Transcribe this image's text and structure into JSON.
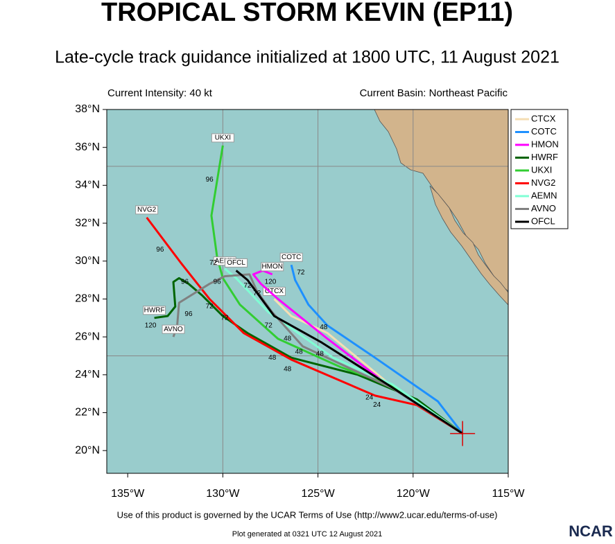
{
  "header": {
    "title": "TROPICAL STORM KEVIN (EP11)",
    "subtitle": "Late-cycle track guidance initialized at 1800 UTC, 11 August 2021",
    "intensity": "Current Intensity: 40 kt",
    "basin": "Current Basin: Northeast Pacific"
  },
  "map": {
    "xlim": [
      -136.1,
      -115
    ],
    "ylim": [
      18.8,
      38
    ],
    "xticks": [
      {
        "value": -135,
        "label": "135°W"
      },
      {
        "value": -130,
        "label": "130°W"
      },
      {
        "value": -125,
        "label": "125°W"
      },
      {
        "value": -120,
        "label": "120°W"
      },
      {
        "value": -115,
        "label": "115°W"
      }
    ],
    "yticks": [
      {
        "value": 20,
        "label": "20°N"
      },
      {
        "value": 22,
        "label": "22°N"
      },
      {
        "value": 24,
        "label": "24°N"
      },
      {
        "value": 26,
        "label": "26°N"
      },
      {
        "value": 28,
        "label": "28°N"
      },
      {
        "value": 30,
        "label": "30°N"
      },
      {
        "value": 32,
        "label": "32°N"
      },
      {
        "value": 34,
        "label": "34°N"
      },
      {
        "value": 36,
        "label": "36°N"
      },
      {
        "value": 38,
        "label": "38°N"
      }
    ],
    "grid_lons": [
      -130,
      -125,
      -120
    ],
    "grid_lats": [
      25,
      35
    ],
    "storm": {
      "lon": -117.4,
      "lat": 20.9
    },
    "tracks": [
      {
        "name": "CTCX",
        "color": "#f5deb3",
        "lon": [
          -117.4,
          -121.0,
          -124.5,
          -126.4,
          -127.3
        ],
        "lat": [
          20.9,
          23.3,
          26.2,
          27.1,
          28.0
        ]
      },
      {
        "name": "COTC",
        "color": "#1e90ff",
        "lon": [
          -117.4,
          -118.7,
          -122.0,
          -124.5,
          -125.5,
          -126.2,
          -126.4
        ],
        "lat": [
          20.9,
          22.6,
          24.9,
          26.6,
          27.7,
          29.0,
          29.8
        ]
      },
      {
        "name": "HMON",
        "color": "#ff00ff",
        "lon": [
          -117.4,
          -121.1,
          -124.5,
          -127.1,
          -128.0,
          -128.4,
          -127.9,
          -127.4
        ],
        "lat": [
          20.9,
          23.3,
          25.9,
          28.0,
          28.8,
          29.3,
          29.5,
          29.3
        ]
      },
      {
        "name": "HWRF",
        "color": "#006400",
        "lon": [
          -117.4,
          -119.8,
          -122.9,
          -126.4,
          -128.7,
          -130.0,
          -131.1,
          -131.8,
          -132.3,
          -132.6,
          -132.5,
          -132.9,
          -133.6
        ],
        "lat": [
          20.9,
          22.7,
          24.0,
          24.9,
          26.2,
          27.1,
          28.2,
          28.8,
          29.1,
          28.9,
          27.6,
          27.1,
          27.0
        ]
      },
      {
        "name": "UKXI",
        "color": "#32cd32",
        "lon": [
          -117.4,
          -121.3,
          -123.8,
          -127.1,
          -129.1,
          -130.0,
          -130.3,
          -130.6,
          -130.0
        ],
        "lat": [
          20.9,
          23.5,
          24.4,
          25.9,
          27.7,
          29.1,
          30.2,
          32.4,
          36.1
        ]
      },
      {
        "name": "NVG2",
        "color": "#ff0000",
        "lon": [
          -117.4,
          -119.8,
          -122.0,
          -126.4,
          -128.9,
          -130.7,
          -132.2,
          -134.0
        ],
        "lat": [
          20.9,
          22.4,
          22.9,
          24.8,
          26.2,
          28.0,
          29.9,
          32.3
        ]
      },
      {
        "name": "AEMN",
        "color": "#7fffd4",
        "lon": [
          -117.4,
          -121.1,
          -124.2,
          -127.6,
          -129.3,
          -129.9
        ],
        "lat": [
          20.9,
          23.5,
          24.9,
          27.3,
          29.1,
          29.6
        ]
      },
      {
        "name": "AVNO",
        "color": "#808080",
        "lon": [
          -117.4,
          -121.1,
          -125.8,
          -127.4,
          -128.2,
          -128.6,
          -129.9,
          -130.7,
          -132.3,
          -132.4,
          -132.6
        ],
        "lat": [
          20.9,
          23.3,
          25.5,
          27.3,
          28.4,
          29.3,
          29.2,
          28.8,
          27.8,
          26.6,
          26.0
        ]
      },
      {
        "name": "OFCL",
        "color": "#000000",
        "lon": [
          -117.4,
          -121.2,
          -124.8,
          -127.3,
          -128.7,
          -129.3
        ],
        "lat": [
          20.9,
          23.4,
          25.7,
          27.1,
          29.0,
          29.5
        ]
      }
    ],
    "hour_labels": [
      {
        "text": "96",
        "lon": -130.7,
        "lat": 34.3
      },
      {
        "text": "96",
        "lon": -133.3,
        "lat": 30.6
      },
      {
        "text": "96",
        "lon": -132.0,
        "lat": 28.9
      },
      {
        "text": "96",
        "lon": -131.8,
        "lat": 27.2
      },
      {
        "text": "96",
        "lon": -130.3,
        "lat": 28.9
      },
      {
        "text": "120",
        "lon": -133.8,
        "lat": 26.6
      },
      {
        "text": "72",
        "lon": -130.5,
        "lat": 29.9
      },
      {
        "text": "72",
        "lon": -130.7,
        "lat": 27.6
      },
      {
        "text": "72",
        "lon": -129.9,
        "lat": 27.0
      },
      {
        "text": "72",
        "lon": -128.7,
        "lat": 28.7
      },
      {
        "text": "72",
        "lon": -128.2,
        "lat": 28.3
      },
      {
        "text": "72",
        "lon": -127.6,
        "lat": 26.6
      },
      {
        "text": "72",
        "lon": -125.9,
        "lat": 29.4
      },
      {
        "text": "120",
        "lon": -127.5,
        "lat": 28.9
      },
      {
        "text": "48",
        "lon": -126.6,
        "lat": 25.9
      },
      {
        "text": "48",
        "lon": -124.7,
        "lat": 26.5
      },
      {
        "text": "48",
        "lon": -127.4,
        "lat": 24.9
      },
      {
        "text": "48",
        "lon": -126.6,
        "lat": 24.3
      },
      {
        "text": "48",
        "lon": -126.0,
        "lat": 25.2
      },
      {
        "text": "48",
        "lon": -124.9,
        "lat": 25.1
      },
      {
        "text": "24",
        "lon": -122.3,
        "lat": 22.8
      },
      {
        "text": "24",
        "lon": -121.9,
        "lat": 22.4
      }
    ]
  },
  "footer": {
    "terms": "Use of this product is governed by the UCAR Terms of Use (http://www2.ucar.edu/terms-of-use)",
    "generated": "Plot generated at 0321 UTC   12 August 2021",
    "logo": "NCAR"
  }
}
